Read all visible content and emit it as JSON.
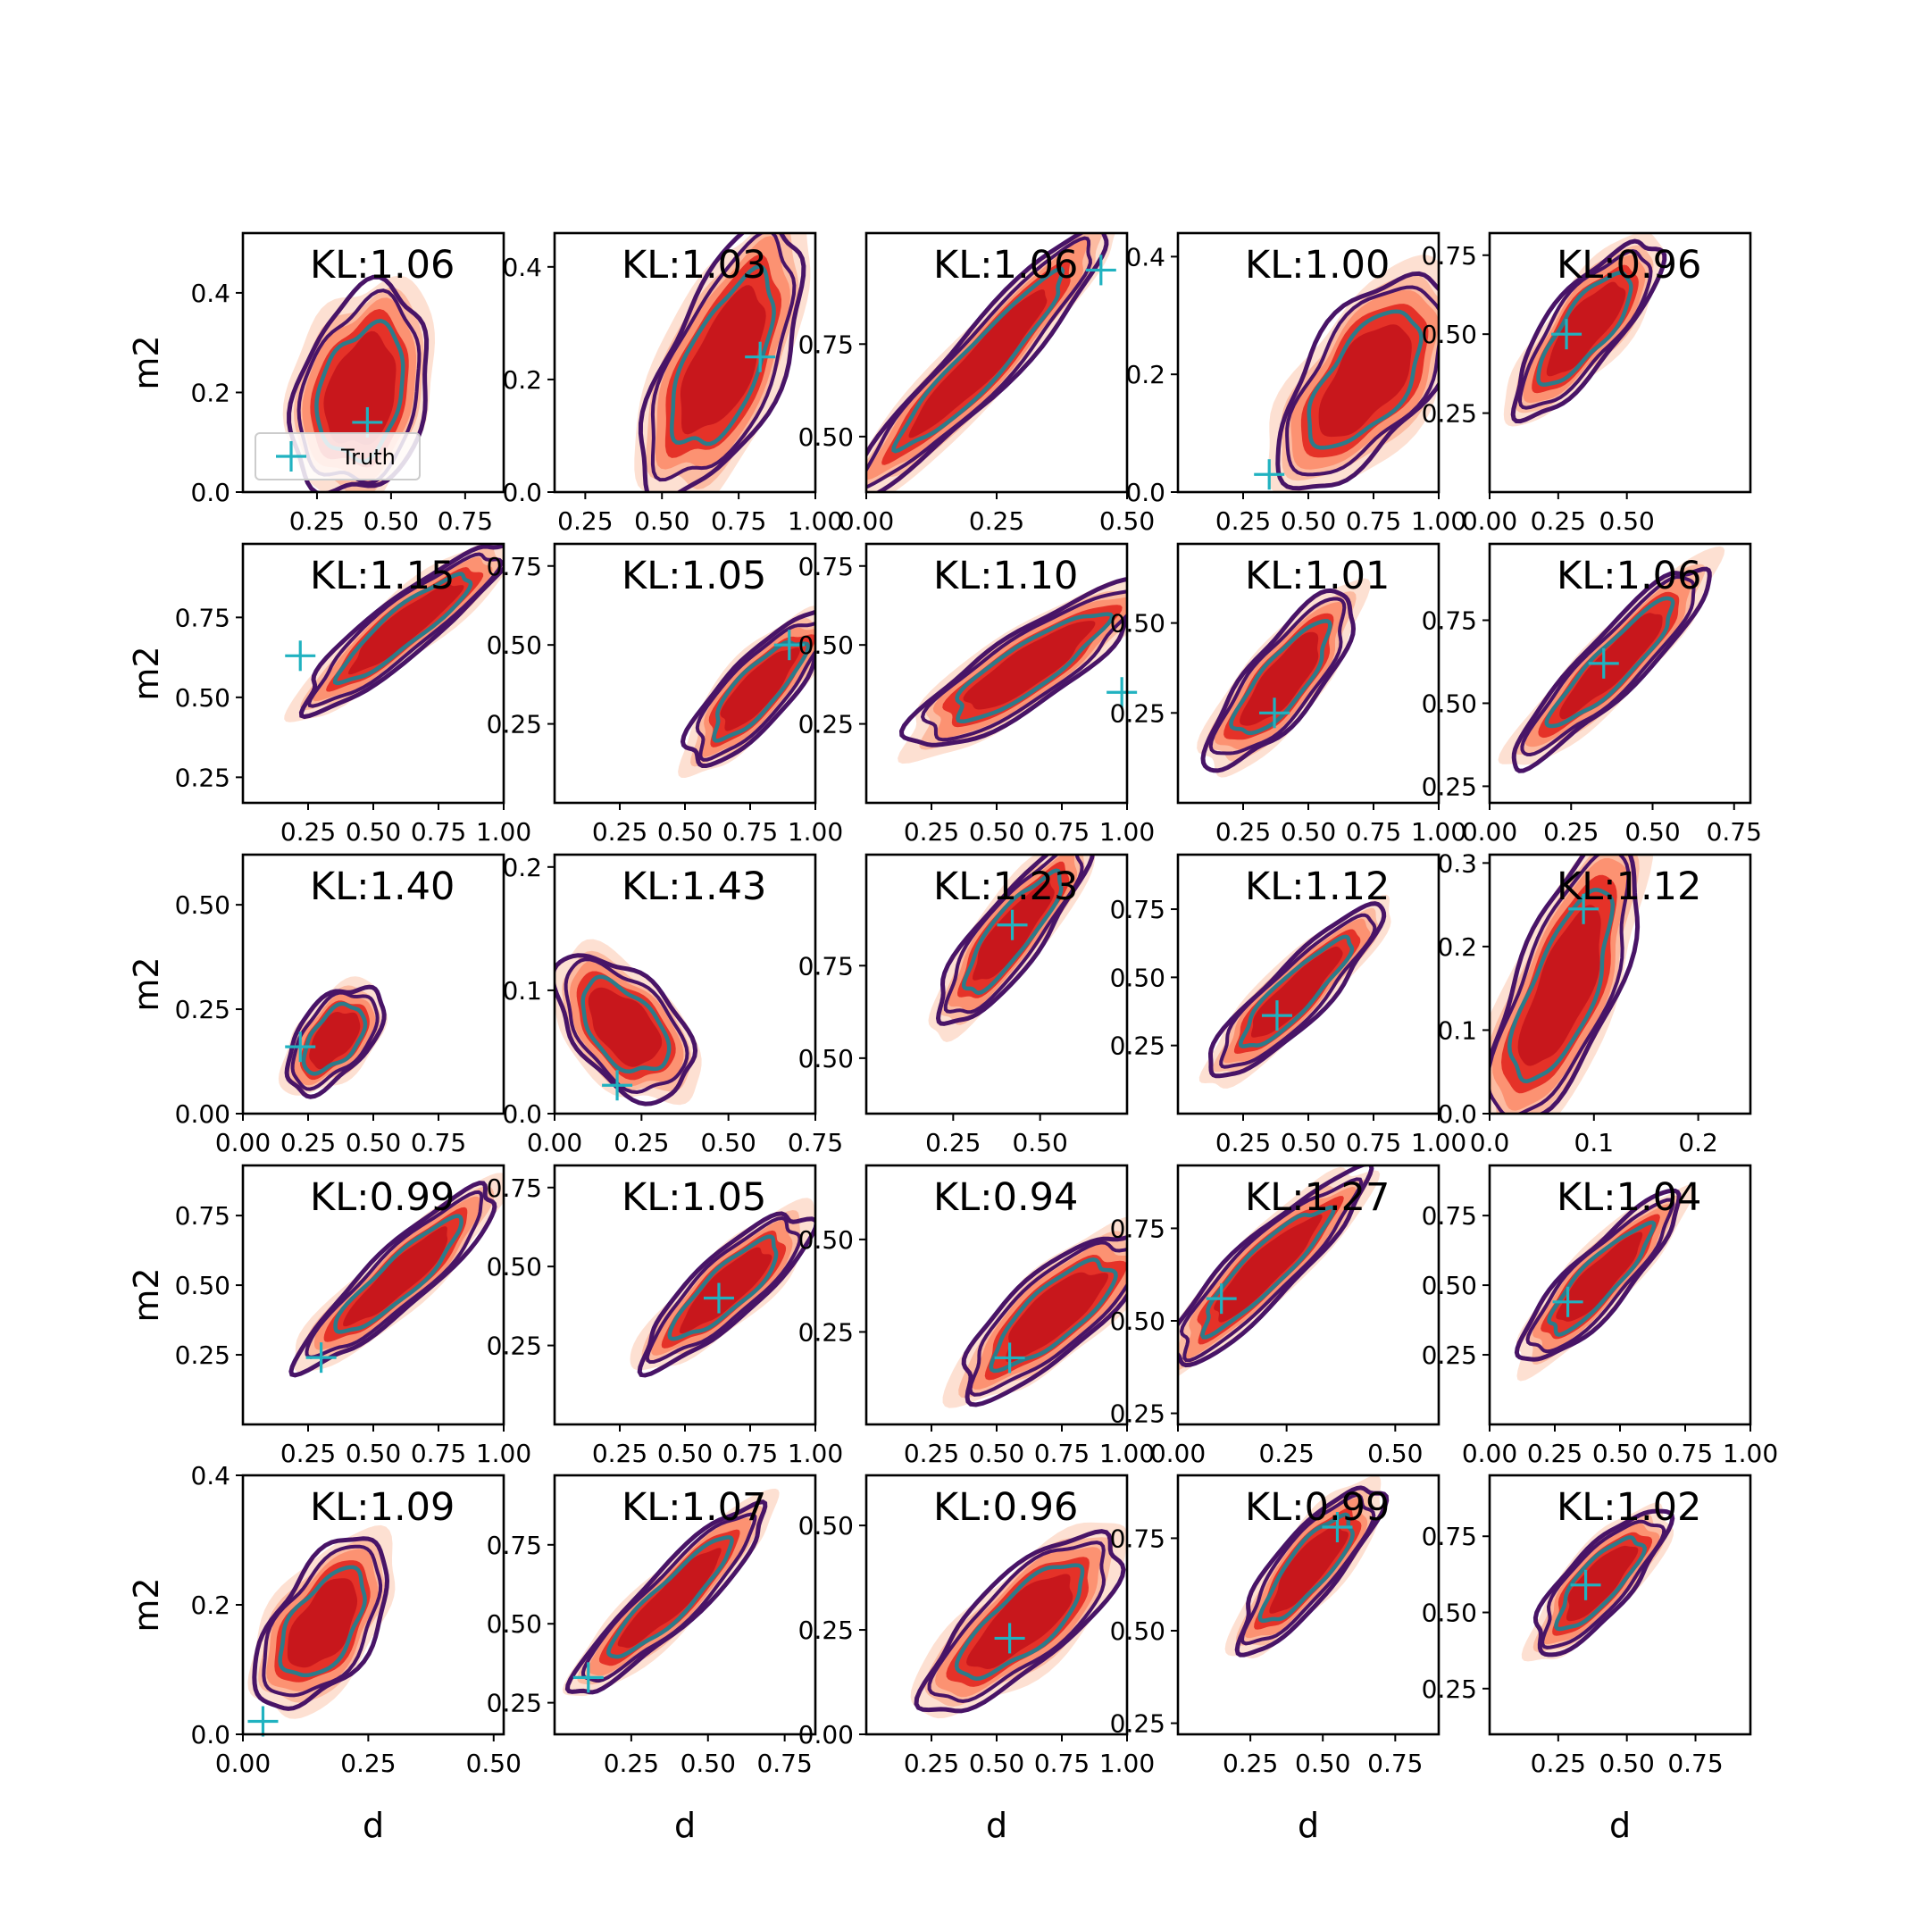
{
  "chart_data": {
    "type": "contour",
    "rows": 5,
    "cols": 5,
    "xlabel": "d",
    "ylabel": "m2",
    "legend": {
      "label": "Truth",
      "position": "lower left of first panel"
    },
    "colors": {
      "fill_levels": [
        "#fde0d2",
        "#fcbba1",
        "#fc9272",
        "#e53228",
        "#c8171c"
      ],
      "outer_contour": "#481467",
      "inner_contour": "#2c7b8a",
      "truth_marker": "#20b2c0"
    },
    "panels": [
      {
        "kl": "KL:1.06",
        "x_ticks": [
          "0.25",
          "0.50",
          "0.75"
        ],
        "xlim": [
          0.0,
          0.88
        ],
        "y_ticks": [
          "0.0",
          "0.2",
          "0.4"
        ],
        "ylim": [
          0.0,
          0.52
        ],
        "truth": [
          0.42,
          0.14
        ],
        "slope": 2.2,
        "center": [
          0.4,
          0.2
        ],
        "spread": [
          0.3,
          0.09
        ],
        "legend": true
      },
      {
        "kl": "KL:1.03",
        "x_ticks": [
          "0.25",
          "0.50",
          "0.75",
          "1.00"
        ],
        "xlim": [
          0.15,
          1.0
        ],
        "y_ticks": [
          "0.0",
          "0.2",
          "0.4"
        ],
        "ylim": [
          0.0,
          0.46
        ],
        "truth": [
          0.82,
          0.24
        ],
        "slope": 1.2,
        "center": [
          0.7,
          0.23
        ],
        "spread": [
          0.4,
          0.07
        ]
      },
      {
        "kl": "KL:1.06",
        "x_ticks": [
          "0.00",
          "0.25",
          "0.50"
        ],
        "xlim": [
          0.0,
          0.5
        ],
        "y_ticks": [
          "0.50",
          "0.75"
        ],
        "ylim": [
          0.35,
          1.05
        ],
        "truth": [
          0.45,
          0.95
        ],
        "slope": 1.5,
        "center": [
          0.22,
          0.7
        ],
        "spread": [
          0.3,
          0.05
        ]
      },
      {
        "kl": "KL:1.00",
        "x_ticks": [
          "0.25",
          "0.50",
          "0.75",
          "1.00"
        ],
        "xlim": [
          0.0,
          1.0
        ],
        "y_ticks": [
          "0.0",
          "0.2",
          "0.4"
        ],
        "ylim": [
          0.0,
          0.44
        ],
        "truth": [
          0.35,
          0.03
        ],
        "slope": 0.6,
        "center": [
          0.72,
          0.19
        ],
        "spread": [
          0.4,
          0.07
        ]
      },
      {
        "kl": "KL:0.96",
        "x_ticks": [
          "0.00",
          "0.25",
          "0.50"
        ],
        "xlim": [
          0.0,
          0.95
        ],
        "y_ticks": [
          "0.25",
          "0.50",
          "0.75"
        ],
        "ylim": [
          0.0,
          0.82
        ],
        "truth": [
          0.28,
          0.5
        ],
        "slope": 1.1,
        "center": [
          0.35,
          0.52
        ],
        "spread": [
          0.33,
          0.07
        ]
      },
      {
        "kl": "KL:1.15",
        "x_ticks": [
          "0.25",
          "0.50",
          "0.75",
          "1.00"
        ],
        "xlim": [
          0.0,
          1.0
        ],
        "y_ticks": [
          "0.25",
          "0.50",
          "0.75"
        ],
        "ylim": [
          0.17,
          0.98
        ],
        "truth": [
          0.22,
          0.63
        ],
        "slope": 0.65,
        "center": [
          0.62,
          0.72
        ],
        "spread": [
          0.42,
          0.05
        ]
      },
      {
        "kl": "KL:1.05",
        "x_ticks": [
          "0.25",
          "0.50",
          "0.75",
          "1.00"
        ],
        "xlim": [
          0.0,
          1.0
        ],
        "y_ticks": [
          "0.25",
          "0.50",
          "0.75"
        ],
        "ylim": [
          0.0,
          0.82
        ],
        "truth": [
          0.9,
          0.5
        ],
        "slope": 0.9,
        "center": [
          0.78,
          0.36
        ],
        "spread": [
          0.32,
          0.06
        ]
      },
      {
        "kl": "KL:1.10",
        "x_ticks": [
          "0.25",
          "0.50",
          "0.75",
          "1.00"
        ],
        "xlim": [
          0.0,
          1.0
        ],
        "y_ticks": [
          "0.25",
          "0.50",
          "0.75"
        ],
        "ylim": [
          0.0,
          0.82
        ],
        "truth": [
          0.98,
          0.35
        ],
        "slope": 0.55,
        "center": [
          0.62,
          0.43
        ],
        "spread": [
          0.45,
          0.07
        ]
      },
      {
        "kl": "KL:1.01",
        "x_ticks": [
          "0.25",
          "0.50",
          "0.75",
          "1.00"
        ],
        "xlim": [
          0.0,
          1.0
        ],
        "y_ticks": [
          "0.25",
          "0.50"
        ],
        "ylim": [
          0.0,
          0.72
        ],
        "truth": [
          0.37,
          0.25
        ],
        "slope": 0.9,
        "center": [
          0.4,
          0.34
        ],
        "spread": [
          0.35,
          0.06
        ]
      },
      {
        "kl": "KL:1.06",
        "x_ticks": [
          "0.00",
          "0.25",
          "0.50",
          "0.75"
        ],
        "xlim": [
          0.0,
          0.8
        ],
        "y_ticks": [
          "0.25",
          "0.50",
          "0.75"
        ],
        "ylim": [
          0.2,
          0.98
        ],
        "truth": [
          0.35,
          0.62
        ],
        "slope": 1.0,
        "center": [
          0.38,
          0.62
        ],
        "spread": [
          0.35,
          0.05
        ]
      },
      {
        "kl": "KL:1.40",
        "x_ticks": [
          "0.00",
          "0.25",
          "0.50",
          "0.75"
        ],
        "xlim": [
          0.0,
          1.0
        ],
        "y_ticks": [
          "0.00",
          "0.25",
          "0.50"
        ],
        "ylim": [
          0.0,
          0.62
        ],
        "truth": [
          0.22,
          0.16
        ],
        "slope": 0.75,
        "center": [
          0.35,
          0.18
        ],
        "spread": [
          0.2,
          0.05
        ]
      },
      {
        "kl": "KL:1.43",
        "x_ticks": [
          "0.00",
          "0.25",
          "0.50",
          "0.75"
        ],
        "xlim": [
          0.0,
          0.75
        ],
        "y_ticks": [
          "0.0",
          "0.1",
          "0.2"
        ],
        "ylim": [
          0.0,
          0.21
        ],
        "truth": [
          0.18,
          0.023
        ],
        "slope": 0.25,
        "center": [
          0.2,
          0.07
        ],
        "spread": [
          0.12,
          0.05
        ]
      },
      {
        "kl": "KL:1.23",
        "x_ticks": [
          "0.25",
          "0.50"
        ],
        "xlim": [
          0.0,
          0.75
        ],
        "y_ticks": [
          "0.50",
          "0.75"
        ],
        "ylim": [
          0.35,
          1.05
        ],
        "truth": [
          0.42,
          0.86
        ],
        "slope": 1.2,
        "center": [
          0.42,
          0.84
        ],
        "spread": [
          0.28,
          0.05
        ]
      },
      {
        "kl": "KL:1.12",
        "x_ticks": [
          "0.25",
          "0.50",
          "0.75",
          "1.00"
        ],
        "xlim": [
          0.0,
          1.0
        ],
        "y_ticks": [
          "0.25",
          "0.50",
          "0.75"
        ],
        "ylim": [
          0.0,
          0.95
        ],
        "truth": [
          0.38,
          0.36
        ],
        "slope": 0.95,
        "center": [
          0.45,
          0.44
        ],
        "spread": [
          0.38,
          0.06
        ]
      },
      {
        "kl": "KL:1.12",
        "x_ticks": [
          "0.0",
          "0.1",
          "0.2"
        ],
        "xlim": [
          0.0,
          0.25
        ],
        "y_ticks": [
          "0.0",
          "0.1",
          "0.2",
          "0.3"
        ],
        "ylim": [
          0.0,
          0.31
        ],
        "truth": [
          0.09,
          0.245
        ],
        "slope": 3.0,
        "center": [
          0.07,
          0.15
        ],
        "spread": [
          0.13,
          0.04
        ]
      },
      {
        "kl": "KL:0.99",
        "x_ticks": [
          "0.25",
          "0.50",
          "0.75",
          "1.00"
        ],
        "xlim": [
          0.0,
          1.0
        ],
        "y_ticks": [
          "0.25",
          "0.50",
          "0.75"
        ],
        "ylim": [
          0.0,
          0.93
        ],
        "truth": [
          0.3,
          0.24
        ],
        "slope": 0.85,
        "center": [
          0.6,
          0.53
        ],
        "spread": [
          0.42,
          0.06
        ]
      },
      {
        "kl": "KL:1.05",
        "x_ticks": [
          "0.25",
          "0.50",
          "0.75",
          "1.00"
        ],
        "xlim": [
          0.0,
          1.0
        ],
        "y_ticks": [
          "0.25",
          "0.50",
          "0.75"
        ],
        "ylim": [
          0.0,
          0.82
        ],
        "truth": [
          0.63,
          0.4
        ],
        "slope": 0.75,
        "center": [
          0.66,
          0.43
        ],
        "spread": [
          0.35,
          0.06
        ]
      },
      {
        "kl": "KL:0.94",
        "x_ticks": [
          "0.25",
          "0.50",
          "0.75",
          "1.00"
        ],
        "xlim": [
          0.0,
          1.0
        ],
        "y_ticks": [
          "0.25",
          "0.50"
        ],
        "ylim": [
          0.0,
          0.7
        ],
        "truth": [
          0.55,
          0.18
        ],
        "slope": 0.6,
        "center": [
          0.72,
          0.3
        ],
        "spread": [
          0.38,
          0.07
        ]
      },
      {
        "kl": "KL:1.27",
        "x_ticks": [
          "0.00",
          "0.25",
          "0.50"
        ],
        "xlim": [
          0.0,
          0.6
        ],
        "y_ticks": [
          "0.25",
          "0.50",
          "0.75"
        ],
        "ylim": [
          0.22,
          0.92
        ],
        "truth": [
          0.1,
          0.56
        ],
        "slope": 1.15,
        "center": [
          0.2,
          0.64
        ],
        "spread": [
          0.26,
          0.05
        ]
      },
      {
        "kl": "KL:1.04",
        "x_ticks": [
          "0.00",
          "0.25",
          "0.50",
          "0.75",
          "1.00"
        ],
        "xlim": [
          0.0,
          1.0
        ],
        "y_ticks": [
          "0.25",
          "0.50",
          "0.75"
        ],
        "ylim": [
          0.0,
          0.93
        ],
        "truth": [
          0.3,
          0.44
        ],
        "slope": 1.0,
        "center": [
          0.42,
          0.52
        ],
        "spread": [
          0.36,
          0.06
        ]
      },
      {
        "kl": "KL:1.09",
        "x_ticks": [
          "0.00",
          "0.25",
          "0.50"
        ],
        "xlim": [
          0.0,
          0.52
        ],
        "y_ticks": [
          "0.0",
          "0.2",
          "0.4"
        ],
        "ylim": [
          0.0,
          0.4
        ],
        "truth": [
          0.04,
          0.02
        ],
        "slope": 1.2,
        "center": [
          0.16,
          0.17
        ],
        "spread": [
          0.16,
          0.05
        ]
      },
      {
        "kl": "KL:1.07",
        "x_ticks": [
          "0.25",
          "0.50",
          "0.75"
        ],
        "xlim": [
          0.0,
          0.85
        ],
        "y_ticks": [
          "0.25",
          "0.50",
          "0.75"
        ],
        "ylim": [
          0.15,
          0.97
        ],
        "truth": [
          0.11,
          0.33
        ],
        "slope": 0.95,
        "center": [
          0.38,
          0.58
        ],
        "spread": [
          0.36,
          0.05
        ]
      },
      {
        "kl": "KL:0.96",
        "x_ticks": [
          "0.25",
          "0.50",
          "0.75",
          "1.00"
        ],
        "xlim": [
          0.0,
          1.0
        ],
        "y_ticks": [
          "0.00",
          "0.25",
          "0.50"
        ],
        "ylim": [
          0.0,
          0.62
        ],
        "truth": [
          0.55,
          0.23
        ],
        "slope": 0.55,
        "center": [
          0.6,
          0.27
        ],
        "spread": [
          0.4,
          0.07
        ]
      },
      {
        "kl": "KL:0.99",
        "x_ticks": [
          "0.25",
          "0.50",
          "0.75"
        ],
        "xlim": [
          0.0,
          0.9
        ],
        "y_ticks": [
          "0.25",
          "0.50",
          "0.75"
        ],
        "ylim": [
          0.22,
          0.92
        ],
        "truth": [
          0.55,
          0.78
        ],
        "slope": 0.95,
        "center": [
          0.45,
          0.67
        ],
        "spread": [
          0.3,
          0.05
        ]
      },
      {
        "kl": "KL:1.02",
        "x_ticks": [
          "0.25",
          "0.50",
          "0.75"
        ],
        "xlim": [
          0.0,
          0.95
        ],
        "y_ticks": [
          "0.25",
          "0.50",
          "0.75"
        ],
        "ylim": [
          0.1,
          0.95
        ],
        "truth": [
          0.35,
          0.59
        ],
        "slope": 1.0,
        "center": [
          0.4,
          0.6
        ],
        "spread": [
          0.28,
          0.06
        ]
      }
    ]
  }
}
